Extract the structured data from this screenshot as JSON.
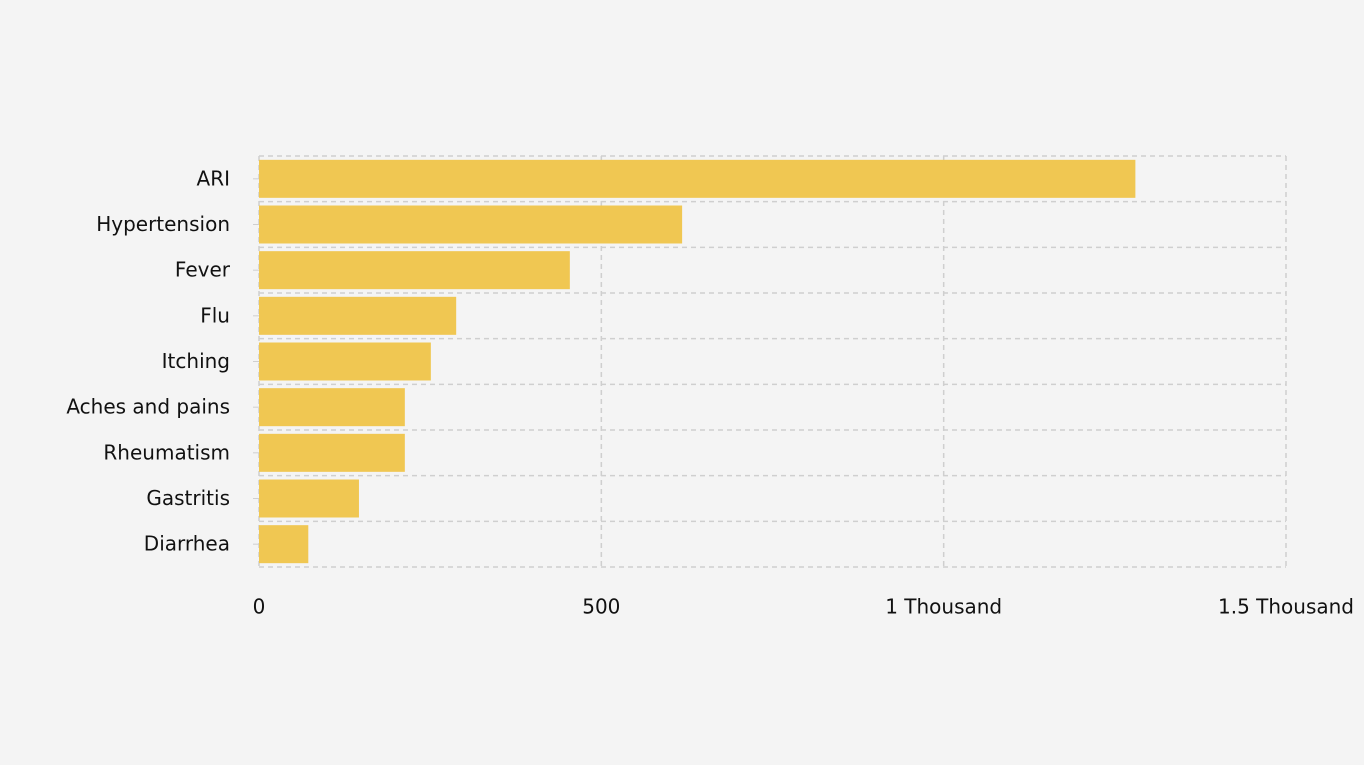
{
  "chart_data": {
    "type": "bar",
    "orientation": "horizontal",
    "categories": [
      "ARI",
      "Hypertension",
      "Fever",
      "Flu",
      "Itching",
      "Aches and pains",
      "Rheumatism",
      "Gastritis",
      "Diarrhea"
    ],
    "values": [
      1280,
      618,
      454,
      288,
      251,
      213,
      213,
      146,
      72
    ],
    "color": "#f0c752",
    "xlim": [
      0,
      1500
    ],
    "xticks": [
      0,
      500,
      {
        "value": 1000,
        "label": "1 Thousand"
      },
      {
        "value": 1500,
        "label": "1.5 Thousand"
      }
    ],
    "grid": true
  }
}
